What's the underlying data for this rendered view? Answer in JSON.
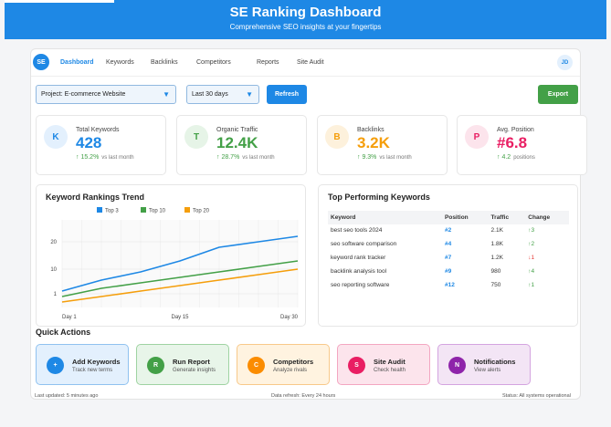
{
  "header": {
    "title": "SE Ranking Dashboard",
    "subtitle": "Comprehensive SEO insights at your fingertips"
  },
  "nav": {
    "logo": "SE",
    "items": [
      "Dashboard",
      "Keywords",
      "Backlinks",
      "Competitors",
      "Reports",
      "Site Audit"
    ],
    "avatar": "JD"
  },
  "toolbar": {
    "project": "Project: E-commerce Website",
    "range": "Last 30 days",
    "refresh": "Refresh",
    "export": "Export"
  },
  "stats": [
    {
      "icon": "K",
      "label": "Total Keywords",
      "value": "428",
      "change": "↑ 15.2%",
      "note": "vs last month",
      "color": "#1e88e5",
      "tint": "#e3f0fd",
      "change_color": "#43a047"
    },
    {
      "icon": "T",
      "label": "Organic Traffic",
      "value": "12.4K",
      "change": "↑ 28.7%",
      "note": "vs last month",
      "color": "#43a047",
      "tint": "#e6f4e7",
      "change_color": "#43a047"
    },
    {
      "icon": "B",
      "label": "Backlinks",
      "value": "3.2K",
      "change": "↑ 9.3%",
      "note": "vs last month",
      "color": "#f59e0b",
      "tint": "#fdf1dc",
      "change_color": "#43a047"
    },
    {
      "icon": "P",
      "label": "Avg. Position",
      "value": "#6.8",
      "change": "↑ 4.2",
      "note": "positions",
      "color": "#e91e63",
      "tint": "#fce4ec",
      "change_color": "#43a047"
    }
  ],
  "chart": {
    "title": "Keyword Rankings Trend"
  },
  "chart_data": {
    "type": "line",
    "title": "Keyword Rankings Trend",
    "x": [
      "Day 1",
      "Day 5",
      "Day 10",
      "Day 15",
      "Day 20",
      "Day 25",
      "Day 30"
    ],
    "xtick_labels": [
      "Day 1",
      "Day 15",
      "Day 30"
    ],
    "yticks": [
      1,
      10,
      20
    ],
    "ylim": [
      -4,
      28
    ],
    "series": [
      {
        "name": "Top 3",
        "color": "#1e88e5",
        "values": [
          2,
          6,
          9,
          13,
          18,
          20,
          22
        ]
      },
      {
        "name": "Top 10",
        "color": "#43a047",
        "values": [
          0,
          3,
          5,
          7,
          9,
          11,
          13
        ]
      },
      {
        "name": "Top 20",
        "color": "#f59e0b",
        "values": [
          -2,
          0,
          2,
          4,
          6,
          8,
          10
        ]
      }
    ]
  },
  "keywords": {
    "title": "Top Performing Keywords",
    "columns": [
      "Keyword",
      "Position",
      "Traffic",
      "Change"
    ],
    "rows": [
      {
        "keyword": "best seo tools 2024",
        "position": "#2",
        "traffic": "2.1K",
        "change": "↑3",
        "up": true
      },
      {
        "keyword": "seo software comparison",
        "position": "#4",
        "traffic": "1.8K",
        "change": "↑2",
        "up": true
      },
      {
        "keyword": "keyword rank tracker",
        "position": "#7",
        "traffic": "1.2K",
        "change": "↓1",
        "up": false
      },
      {
        "keyword": "backlink analysis tool",
        "position": "#9",
        "traffic": "980",
        "change": "↑4",
        "up": true
      },
      {
        "keyword": "seo reporting software",
        "position": "#12",
        "traffic": "750",
        "change": "↑1",
        "up": true
      }
    ]
  },
  "quick_actions": {
    "title": "Quick Actions",
    "items": [
      {
        "icon": "+",
        "title": "Add Keywords",
        "sub": "Track new terms",
        "color": "#1e88e5",
        "bg": "#e3f0fd",
        "border": "#90c2f0"
      },
      {
        "icon": "R",
        "title": "Run Report",
        "sub": "Generate insights",
        "color": "#43a047",
        "bg": "#e8f5e9",
        "border": "#9fd3a2"
      },
      {
        "icon": "C",
        "title": "Competitors",
        "sub": "Analyze rivals",
        "color": "#fb8c00",
        "bg": "#fff3e0",
        "border": "#f8c98a"
      },
      {
        "icon": "S",
        "title": "Site Audit",
        "sub": "Check health",
        "color": "#e91e63",
        "bg": "#fce4ec",
        "border": "#f3a6c1"
      },
      {
        "icon": "N",
        "title": "Notifications",
        "sub": "View alerts",
        "color": "#8e24aa",
        "bg": "#f3e5f5",
        "border": "#d4a4e0"
      }
    ]
  },
  "footer": {
    "left": "Last updated: 5 minutes ago",
    "center": "Data refresh: Every 24 hours",
    "right": "Status: All systems operational"
  }
}
